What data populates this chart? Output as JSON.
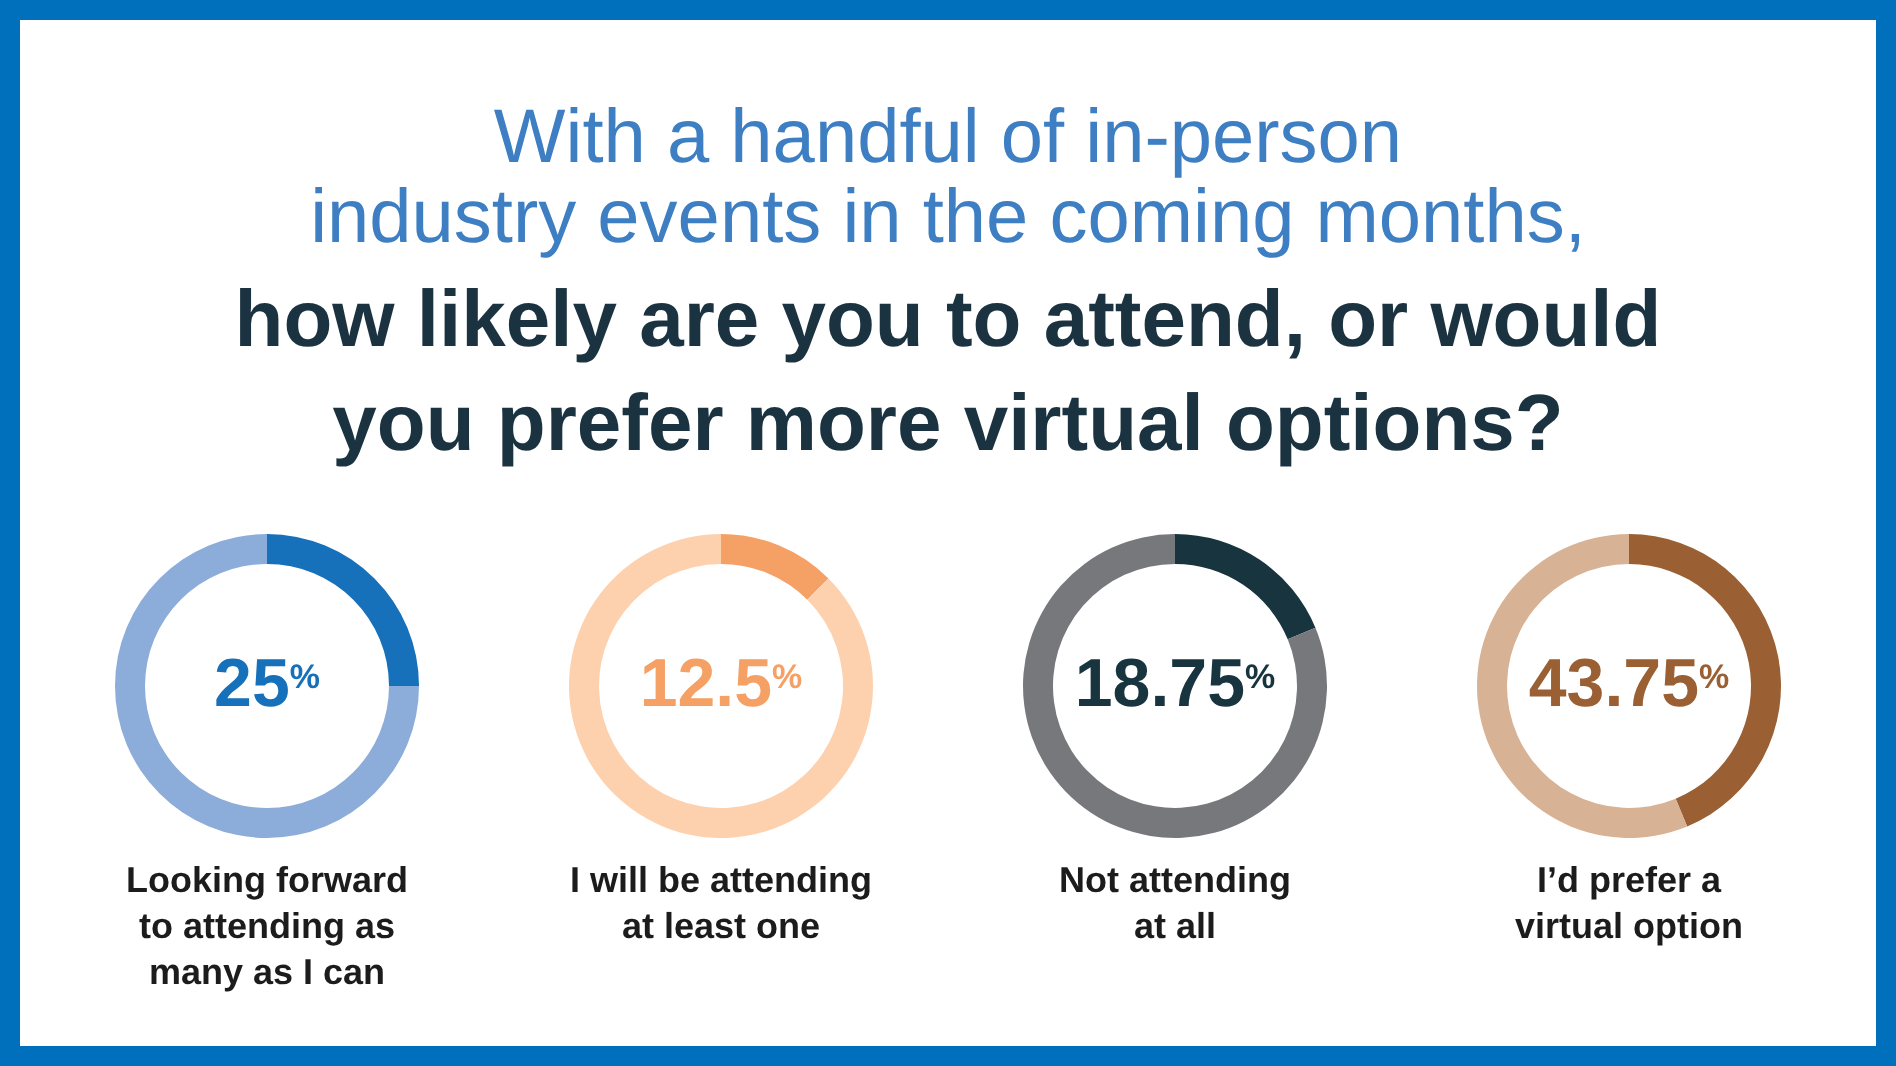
{
  "chart_data": [
    {
      "type": "donut",
      "title": "With a handful of in-person industry events in the coming months,",
      "subtitle": "how likely are you to attend, or would you prefer more virtual options?",
      "xlabel": "Looking forward to attending as many as I can",
      "categories": [
        null,
        null
      ],
      "values": [
        25,
        75
      ],
      "colors": [
        "#1670ba",
        "#8cacd9"
      ],
      "value_labels": [
        "25$^{%}$",
        null
      ]
    },
    {
      "type": "donut",
      "xlabel": "I will be attending at least one",
      "categories": [
        null,
        null
      ],
      "values": [
        12.5,
        87.5
      ],
      "colors": [
        "#f5a064",
        "#fdd0ae"
      ],
      "value_labels": [
        "12.5$^{%}$",
        null
      ]
    },
    {
      "type": "donut",
      "xlabel": "Not attending at all",
      "categories": [
        null,
        null
      ],
      "values": [
        18.75,
        81.25
      ],
      "colors": [
        "#17343f",
        "#77787c"
      ],
      "value_labels": [
        "18.75$^{%}$",
        null
      ]
    },
    {
      "type": "donut",
      "xlabel": "I’d prefer a virtual option",
      "categories": [
        null,
        null
      ],
      "values": [
        43.75,
        56.25
      ],
      "colors": [
        "#9a5f33",
        "#d8b294"
      ],
      "value_labels": [
        "43.75$^{%}$",
        null
      ]
    }
  ]
}
